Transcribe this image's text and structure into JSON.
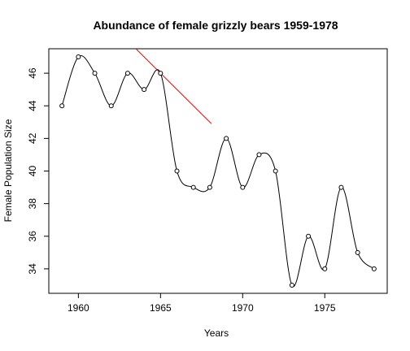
{
  "chart_data": {
    "type": "line",
    "title": "Abundance of female grizzly bears 1959-1978",
    "xlabel": "Years",
    "ylabel": "Female Population Size",
    "xlim": [
      1958.2,
      1978.8
    ],
    "ylim": [
      32.5,
      47.5
    ],
    "x_ticks": [
      1960,
      1965,
      1970,
      1975
    ],
    "y_ticks": [
      34,
      36,
      38,
      40,
      42,
      44,
      46
    ],
    "grid": false,
    "legend": "none",
    "series": [
      {
        "x": [
          1959,
          1960,
          1961,
          1962,
          1963,
          1964,
          1965,
          1966,
          1967,
          1968,
          1969,
          1970,
          1971,
          1972,
          1973,
          1974,
          1975,
          1976,
          1977,
          1978
        ],
        "values": [
          44,
          47,
          46,
          44,
          46,
          45,
          46,
          40,
          39,
          39,
          42,
          39,
          41,
          40,
          33,
          36,
          34,
          39,
          35,
          34
        ],
        "marker": "open-circle",
        "color": "#000000",
        "line": "smooth-spline"
      }
    ],
    "annotations": [
      {
        "type": "segment",
        "color": "#ff0000",
        "x": [
          1963.5,
          1968.1
        ],
        "y": [
          47.5,
          42.9
        ]
      }
    ]
  }
}
